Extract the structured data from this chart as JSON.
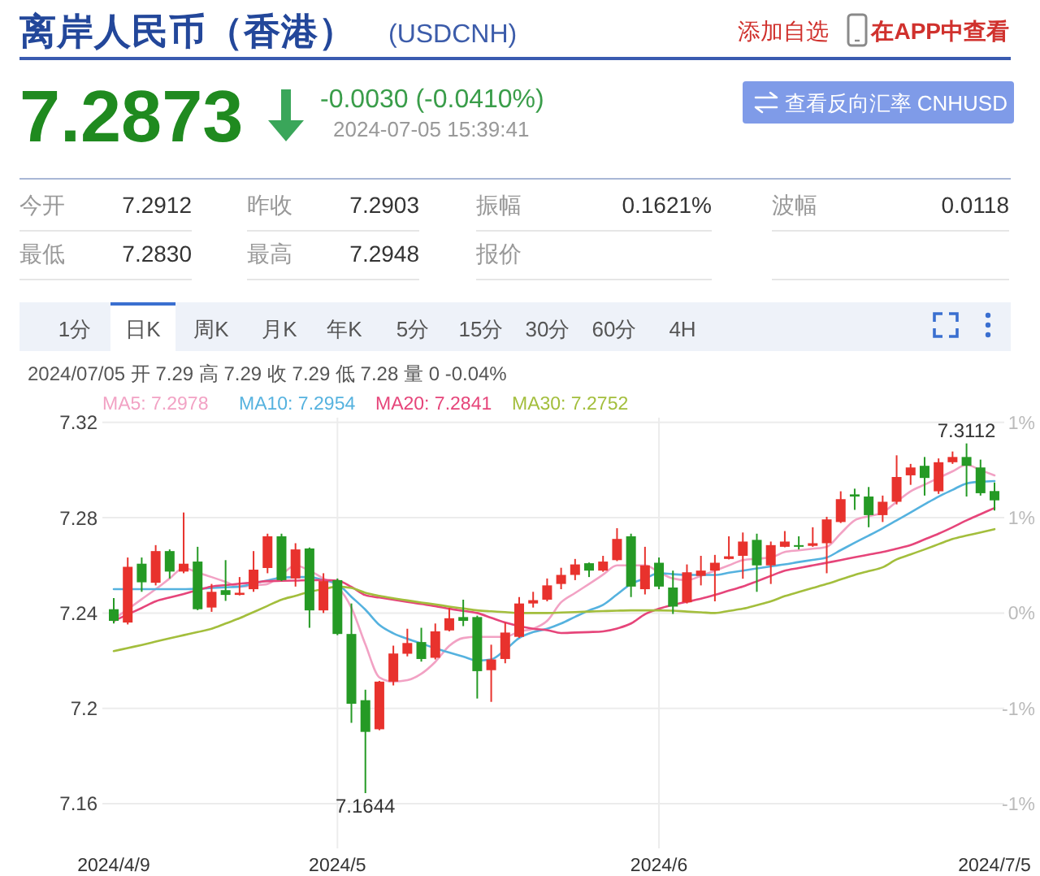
{
  "chart_data": {
    "type": "candlestick",
    "title": "离岸人民币（香港）",
    "subtitle": "(USDCNH)",
    "annotations": [
      "添加自选",
      "在APP中查看",
      "7.2873",
      "-0.0030 (-0.0410%)",
      "2024-07-05 15:39:41",
      "查看反向汇率 CNHUSD",
      "今开",
      "7.2912",
      "昨收",
      "7.2903",
      "振幅",
      "0.1621%",
      "波幅",
      "0.0118",
      "最低",
      "7.2830",
      "最高",
      "7.2948",
      "报价",
      "1分",
      "日K",
      "周K",
      "月K",
      "年K",
      "5分",
      "15分",
      "30分",
      "60分",
      "4H",
      "2024/07/05 开 7.29 高 7.29 收 7.29 低 7.28 量 0 -0.04%",
      {
        "text": "7.3112",
        "y": 7.3112
      },
      {
        "text": "7.1644",
        "y": 7.1644
      }
    ],
    "categories": [
      "2024/4/9",
      null,
      null,
      null,
      null,
      null,
      null,
      null,
      null,
      null,
      null,
      null,
      null,
      null,
      null,
      null,
      "2024/5",
      null,
      null,
      null,
      null,
      null,
      null,
      null,
      null,
      null,
      null,
      null,
      null,
      null,
      null,
      null,
      null,
      null,
      null,
      null,
      null,
      null,
      null,
      "2024/6",
      null,
      null,
      null,
      null,
      null,
      null,
      null,
      null,
      null,
      null,
      null,
      null,
      null,
      null,
      null,
      null,
      null,
      null,
      null,
      null,
      null,
      null,
      null,
      "2024/7/5"
    ],
    "ohlc": [
      [
        7.2416,
        7.2463,
        7.2356,
        7.2367
      ],
      [
        7.236,
        7.2633,
        7.2352,
        7.2594
      ],
      [
        7.2607,
        7.2633,
        7.2489,
        7.2529
      ],
      [
        7.2527,
        7.2685,
        7.2516,
        7.266
      ],
      [
        7.266,
        7.2667,
        7.2545,
        7.2574
      ],
      [
        7.2574,
        7.2822,
        7.2567,
        7.2607
      ],
      [
        7.2616,
        7.2678,
        7.2412,
        7.2416
      ],
      [
        7.2423,
        7.2522,
        7.2405,
        7.2489
      ],
      [
        7.2496,
        7.2622,
        7.2451,
        7.2476
      ],
      [
        7.2476,
        7.2551,
        7.2474,
        7.2485
      ],
      [
        7.25,
        7.266,
        7.2489,
        7.2582
      ],
      [
        7.2589,
        7.2733,
        7.2567,
        7.2722
      ],
      [
        7.2722,
        7.2733,
        7.2534,
        7.2538
      ],
      [
        7.2545,
        7.2693,
        7.2511,
        7.2667
      ],
      [
        7.2671,
        7.2675,
        7.2338,
        7.2411
      ],
      [
        7.2411,
        7.2567,
        7.24,
        7.2534
      ],
      [
        7.2538,
        7.2545,
        7.2307,
        7.2312
      ],
      [
        7.2312,
        7.244,
        7.1939,
        7.2019
      ],
      [
        7.2034,
        7.2078,
        7.1644,
        7.1901
      ],
      [
        7.1912,
        7.2115,
        7.1908,
        7.2112
      ],
      [
        7.2112,
        7.2263,
        7.2096,
        7.223
      ],
      [
        7.2229,
        7.2334,
        7.2218,
        7.2274
      ],
      [
        7.2278,
        7.2338,
        7.2196,
        7.2207
      ],
      [
        7.2212,
        7.2356,
        7.2205,
        7.2323
      ],
      [
        7.2327,
        7.2422,
        7.2323,
        7.2378
      ],
      [
        7.2383,
        7.2456,
        7.2345,
        7.2367
      ],
      [
        7.2383,
        7.2389,
        7.2041,
        7.2156
      ],
      [
        7.216,
        7.2267,
        7.2027,
        7.2205
      ],
      [
        7.2207,
        7.236,
        7.2189,
        7.2318
      ],
      [
        7.23,
        7.2467,
        7.2296,
        7.244
      ],
      [
        7.244,
        7.2489,
        7.2423,
        7.2454
      ],
      [
        7.2456,
        7.2545,
        7.2449,
        7.2516
      ],
      [
        7.2522,
        7.259,
        7.25,
        7.256
      ],
      [
        7.256,
        7.2627,
        7.2538,
        7.2604
      ],
      [
        7.2609,
        7.2612,
        7.2551,
        7.2578
      ],
      [
        7.2578,
        7.264,
        7.2573,
        7.2616
      ],
      [
        7.2622,
        7.2756,
        7.2618,
        7.2711
      ],
      [
        7.2722,
        7.2733,
        7.2467,
        7.2511
      ],
      [
        7.25,
        7.2678,
        7.2478,
        7.26
      ],
      [
        7.2611,
        7.2633,
        7.25,
        7.2511
      ],
      [
        7.2507,
        7.2578,
        7.2396,
        7.2427
      ],
      [
        7.2445,
        7.2604,
        7.244,
        7.2571
      ],
      [
        7.2556,
        7.264,
        7.2516,
        7.2578
      ],
      [
        7.2578,
        7.2644,
        7.2449,
        7.2611
      ],
      [
        7.2627,
        7.2722,
        7.2625,
        7.2638
      ],
      [
        7.264,
        7.2738,
        7.2544,
        7.27
      ],
      [
        7.2707,
        7.2733,
        7.2489,
        7.26
      ],
      [
        7.26,
        7.27,
        7.2522,
        7.2685
      ],
      [
        7.2678,
        7.2744,
        7.2676,
        7.27
      ],
      [
        7.2685,
        7.2722,
        7.2667,
        7.2678
      ],
      [
        7.2682,
        7.276,
        7.2678,
        7.2693
      ],
      [
        7.2693,
        7.2804,
        7.2567,
        7.2793
      ],
      [
        7.2782,
        7.2911,
        7.2778,
        7.2878
      ],
      [
        7.2898,
        7.2922,
        7.2833,
        7.2889
      ],
      [
        7.2889,
        7.2929,
        7.276,
        7.2811
      ],
      [
        7.2811,
        7.2893,
        7.2782,
        7.2867
      ],
      [
        7.2867,
        7.3062,
        7.2856,
        7.2971
      ],
      [
        7.2978,
        7.3026,
        7.2938,
        7.3011
      ],
      [
        7.3018,
        7.3055,
        7.2893,
        7.2967
      ],
      [
        7.2911,
        7.3049,
        7.29,
        7.3033
      ],
      [
        7.3033,
        7.3078,
        7.3026,
        7.3055
      ],
      [
        7.3055,
        7.3112,
        7.2889,
        7.3018
      ],
      [
        7.3011,
        7.3044,
        7.2893,
        7.2903
      ],
      [
        7.2912,
        7.2948,
        7.283,
        7.2873
      ]
    ],
    "colors": [
      "#259a25",
      "#e8322d",
      "#259a25",
      "#e8322d",
      "#259a25",
      "#e8322d",
      "#259a25",
      "#e8322d",
      "#259a25",
      "#e8322d",
      "#e8322d",
      "#e8322d",
      "#259a25",
      "#e8322d",
      "#259a25",
      "#e8322d",
      "#259a25",
      "#259a25",
      "#259a25",
      "#e8322d",
      "#e8322d",
      "#e8322d",
      "#259a25",
      "#e8322d",
      "#e8322d",
      "#259a25",
      "#259a25",
      "#e8322d",
      "#e8322d",
      "#e8322d",
      "#e8322d",
      "#e8322d",
      "#e8322d",
      "#e8322d",
      "#259a25",
      "#e8322d",
      "#e8322d",
      "#259a25",
      "#e8322d",
      "#259a25",
      "#259a25",
      "#e8322d",
      "#e8322d",
      "#e8322d",
      "#e8322d",
      "#e8322d",
      "#259a25",
      "#e8322d",
      "#e8322d",
      "#259a25",
      "#e8322d",
      "#e8322d",
      "#e8322d",
      "#259a25",
      "#259a25",
      "#e8322d",
      "#e8322d",
      "#e8322d",
      "#259a25",
      "#e8322d",
      "#e8322d",
      "#259a25",
      "#259a25",
      "#259a25"
    ],
    "series": [
      {
        "type": "line",
        "name": "MA5: 7.2978",
        "color": "#f2a2c4",
        "values": [
          7.2374,
          7.2416,
          7.2458,
          7.25,
          7.2545,
          7.2589,
          7.257,
          7.2551,
          7.2531,
          7.2511,
          7.2516,
          7.2522,
          7.2561,
          7.26,
          7.2578,
          7.2545,
          7.2511,
          7.2422,
          7.2268,
          7.213,
          7.2112,
          7.2118,
          7.2145,
          7.2195,
          7.2262,
          7.2295,
          7.23,
          7.23,
          7.23,
          7.2322,
          7.2334,
          7.2367,
          7.2445,
          7.2484,
          7.2522,
          7.2561,
          7.26,
          7.26,
          7.26,
          7.2572,
          7.2545,
          7.2538,
          7.2556,
          7.2578,
          7.26,
          7.2622,
          7.2628,
          7.2633,
          7.2656,
          7.2663,
          7.267,
          7.2678,
          7.2734,
          7.2789,
          7.2806,
          7.2822,
          7.2867,
          7.2911,
          7.2939,
          7.2967,
          7.2995,
          7.3022,
          7.3,
          7.2978
        ]
      },
      {
        "type": "line",
        "name": "MA10: 7.2954",
        "color": "#55b2df",
        "values": [
          7.25,
          7.25,
          7.25,
          7.25,
          7.25,
          7.25,
          7.2502,
          7.2505,
          7.2508,
          7.2511,
          7.2524,
          7.2537,
          7.2549,
          7.2551,
          7.2551,
          7.2538,
          7.2522,
          7.2468,
          7.2414,
          7.235,
          7.2315,
          7.2292,
          7.2272,
          7.2252,
          7.2234,
          7.2217,
          7.22,
          7.2205,
          7.2245,
          7.2295,
          7.232,
          7.2334,
          7.2356,
          7.2384,
          7.2411,
          7.2434,
          7.2478,
          7.2522,
          7.2545,
          7.2567,
          7.2563,
          7.256,
          7.256,
          7.256,
          7.2569,
          7.2578,
          7.2587,
          7.2596,
          7.2604,
          7.2614,
          7.2623,
          7.2633,
          7.2664,
          7.2695,
          7.2725,
          7.2756,
          7.2789,
          7.2822,
          7.2856,
          7.2889,
          7.2917,
          7.2944,
          7.2951,
          7.2954
        ]
      },
      {
        "type": "line",
        "name": "MA20: 7.2841",
        "color": "#e6457a",
        "values": [
          7.2367,
          7.2394,
          7.2421,
          7.2449,
          7.2465,
          7.248,
          7.2496,
          7.2511,
          7.2517,
          7.2523,
          7.2528,
          7.2534,
          7.2535,
          7.2536,
          7.2538,
          7.2538,
          7.2536,
          7.251,
          7.2475,
          7.2465,
          7.2456,
          7.2447,
          7.2438,
          7.2429,
          7.2418,
          7.2409,
          7.24,
          7.238,
          7.236,
          7.2345,
          7.2334,
          7.2328,
          7.2316,
          7.2318,
          7.232,
          7.2323,
          7.2335,
          7.2356,
          7.2395,
          7.2418,
          7.2434,
          7.2447,
          7.246,
          7.2476,
          7.2494,
          7.2511,
          7.2533,
          7.2556,
          7.2578,
          7.2589,
          7.26,
          7.2611,
          7.2622,
          7.2634,
          7.2645,
          7.2656,
          7.267,
          7.2685,
          7.2709,
          7.2733,
          7.276,
          7.2789,
          7.2815,
          7.2841
        ]
      },
      {
        "type": "line",
        "name": "MA30: 7.2752",
        "color": "#a3be3c",
        "values": [
          7.224,
          7.2253,
          7.2266,
          7.228,
          7.2294,
          7.2307,
          7.232,
          7.2334,
          7.2356,
          7.2378,
          7.2404,
          7.243,
          7.2456,
          7.2472,
          7.2489,
          7.25,
          7.2511,
          7.2505,
          7.2485,
          7.2472,
          7.2462,
          7.2453,
          7.2444,
          7.2436,
          7.2427,
          7.2419,
          7.2411,
          7.2407,
          7.2404,
          7.24,
          7.24,
          7.24,
          7.2402,
          7.2404,
          7.2406,
          7.2408,
          7.241,
          7.2411,
          7.2411,
          7.2411,
          7.241,
          7.2406,
          7.2403,
          7.24,
          7.2409,
          7.2418,
          7.2433,
          7.2449,
          7.2471,
          7.2488,
          7.2505,
          7.2522,
          7.2541,
          7.256,
          7.2576,
          7.2592,
          7.2625,
          7.2646,
          7.2667,
          7.2689,
          7.2711,
          7.2725,
          7.2738,
          7.2752
        ]
      }
    ],
    "ylim": [
      7.1412,
      7.322
    ],
    "yticks": [
      7.16,
      7.2,
      7.24,
      7.28,
      7.32
    ],
    "y2lim": [
      -1.3646,
      1.1326
    ],
    "y2ticks": [
      {
        "value": -1.105,
        "label": "-1%"
      },
      {
        "value": -0.5525,
        "label": "-1%"
      },
      {
        "value": 0,
        "label": "0%"
      },
      {
        "value": 0.5525,
        "label": "1%"
      },
      {
        "value": 1.105,
        "label": "1%"
      }
    ],
    "grid": true,
    "legend": "top left"
  }
}
